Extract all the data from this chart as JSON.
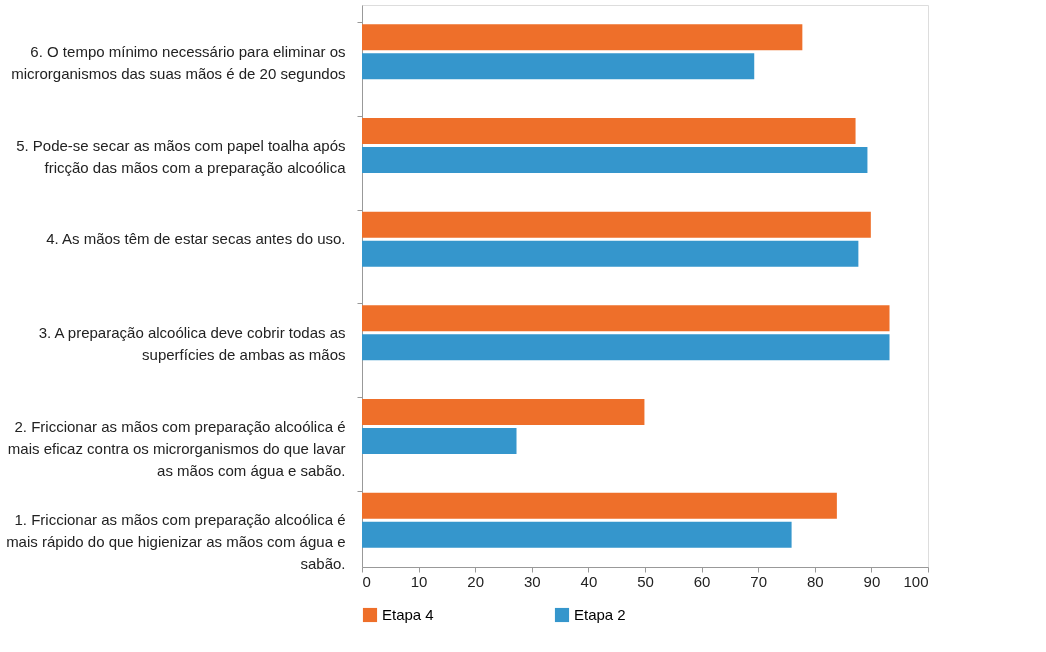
{
  "chart_data": {
    "type": "bar",
    "orientation": "horizontal",
    "categories": [
      "6. O tempo mínimo necessário para eliminar os microrganismos das suas mãos é de 20 segundos",
      "5. Pode-se secar as mãos com papel toalha após fricção das mãos com a preparação alcoólica",
      "4. As mãos têm de estar secas antes do uso.",
      "3. A preparação alcoólica deve cobrir todas as superfícies de ambas as mãos",
      "2. Friccionar as mãos com preparação alcoólica é mais eficaz contra os microrganismos do que lavar as mãos com água e sabão.",
      "1. Friccionar as mãos com preparação alcoólica é mais rápido do que higienizar as mãos com água e sabão."
    ],
    "series": [
      {
        "name": "Etapa 4",
        "color": "#ee6f2a",
        "values": [
          77.8,
          87.2,
          89.9,
          93.2,
          49.9,
          83.9
        ]
      },
      {
        "name": "Etapa 2",
        "color": "#3596cc",
        "values": [
          69.3,
          89.3,
          87.7,
          93.2,
          27.3,
          75.9
        ]
      }
    ],
    "xlim": [
      0,
      100
    ],
    "xticks": [
      0,
      10,
      20,
      30,
      40,
      50,
      60,
      70,
      80,
      90,
      100
    ],
    "grid": false,
    "legend": "bottom"
  }
}
